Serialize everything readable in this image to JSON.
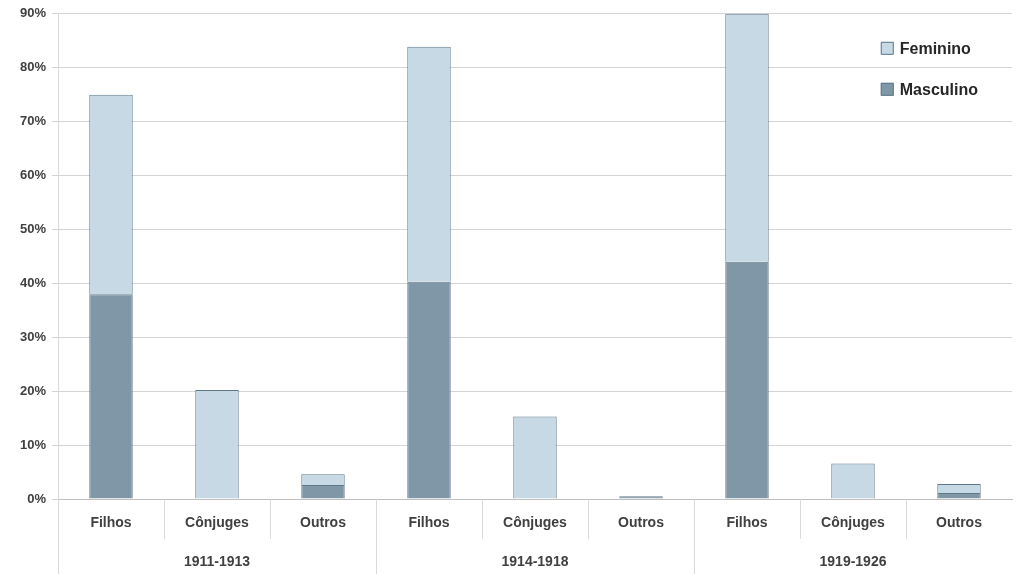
{
  "chart_data": {
    "type": "bar",
    "categories": [
      "Filhos",
      "Cônjuges",
      "Outros",
      "Filhos",
      "Cônjuges",
      "Outros",
      "Filhos",
      "Cônjuges",
      "Outros"
    ],
    "series": [
      {
        "name": "Masculino",
        "color": "#7f97a6",
        "values": [
          38,
          0,
          2.6,
          40.3,
          0,
          0.5,
          44,
          0,
          1.1
        ]
      },
      {
        "name": "Feminino",
        "color": "#c6d9e4",
        "values": [
          37,
          20.2,
          2,
          43.6,
          15.3,
          0,
          46,
          6.6,
          1.7
        ]
      }
    ],
    "stacked": true,
    "ylim": [
      0,
      90
    ],
    "yticks": [
      {
        "value": 0,
        "label": "0%"
      },
      {
        "value": 10,
        "label": "10%"
      },
      {
        "value": 20,
        "label": "20%"
      },
      {
        "value": 30,
        "label": "30%"
      },
      {
        "value": 40,
        "label": "40%"
      },
      {
        "value": 50,
        "label": "50%"
      },
      {
        "value": 60,
        "label": "60%"
      },
      {
        "value": 70,
        "label": "70%"
      },
      {
        "value": 80,
        "label": "80%"
      },
      {
        "value": 90,
        "label": "90%"
      }
    ],
    "grid": "y",
    "legend": "top right",
    "annotations": [
      "1911-1913",
      "1914-1918",
      "1919-1926"
    ]
  }
}
